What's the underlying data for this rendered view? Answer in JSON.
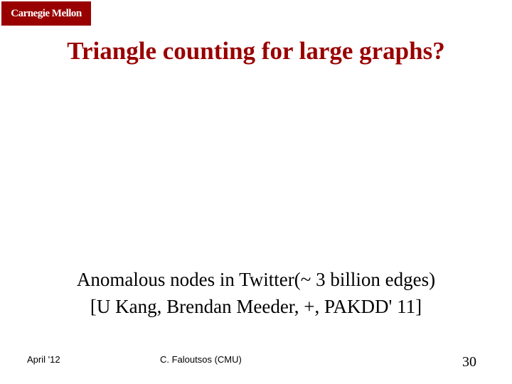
{
  "logo": {
    "text": "Carnegie Mellon",
    "bg_color": "#990000",
    "text_color": "#ffffff"
  },
  "title": {
    "text": "Triangle counting for large graphs?",
    "color": "#990000",
    "fontsize": 35
  },
  "body": {
    "line1": "Anomalous nodes in Twitter(~ 3 billion edges)",
    "line2": "[U Kang, Brendan Meeder, +, PAKDD' 11]",
    "color": "#000000",
    "fontsize": 27
  },
  "footer": {
    "date": "April '12",
    "center": "C. Faloutsos (CMU)",
    "page": "30",
    "fontsize": 13
  },
  "background_color": "#ffffff"
}
